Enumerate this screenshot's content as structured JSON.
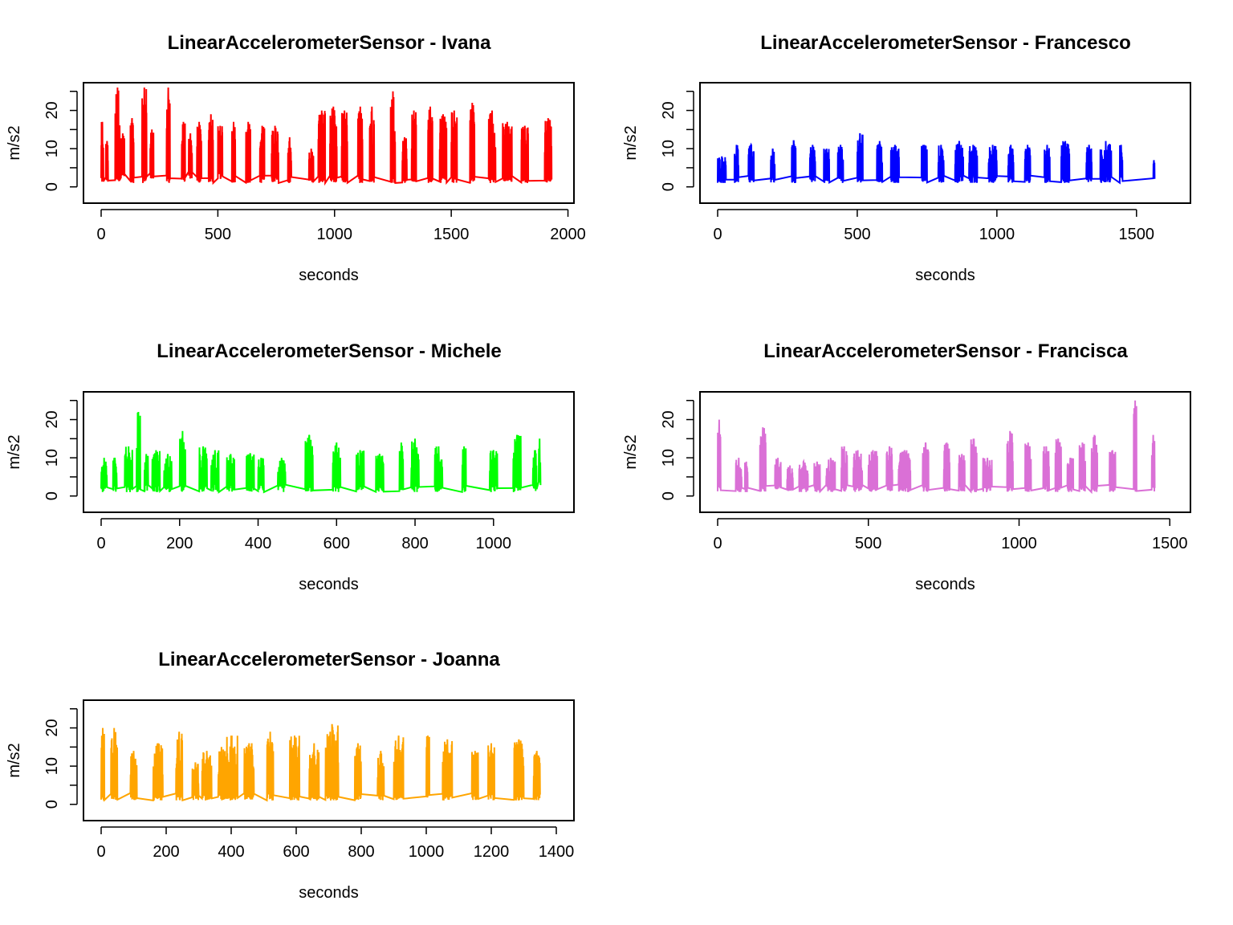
{
  "chart_data": [
    {
      "type": "line",
      "title": "LinearAccelerometerSensor - Ivana",
      "xlabel": "seconds",
      "ylabel": "m/s2",
      "color": "#ff0000",
      "xlim": [
        0,
        1950
      ],
      "ylim": [
        -3,
        26
      ],
      "xticks": [
        0,
        500,
        1000,
        1500,
        2000
      ],
      "yticks": [
        0,
        5,
        10,
        15,
        20,
        25
      ],
      "ytick_labels": [
        "0",
        "",
        "10",
        "",
        "20",
        ""
      ],
      "bursts": [
        [
          0,
          10,
          1,
          17
        ],
        [
          20,
          30,
          1,
          12
        ],
        [
          60,
          80,
          1,
          26
        ],
        [
          85,
          100,
          2,
          14
        ],
        [
          125,
          140,
          1,
          18
        ],
        [
          175,
          195,
          1,
          26
        ],
        [
          210,
          225,
          2,
          15
        ],
        [
          280,
          295,
          1,
          26
        ],
        [
          345,
          360,
          1,
          17
        ],
        [
          375,
          390,
          2,
          14
        ],
        [
          410,
          430,
          1,
          17
        ],
        [
          460,
          480,
          1,
          19
        ],
        [
          500,
          520,
          2,
          16
        ],
        [
          560,
          575,
          1,
          17
        ],
        [
          620,
          640,
          1,
          17
        ],
        [
          680,
          700,
          1,
          16
        ],
        [
          730,
          760,
          1,
          16
        ],
        [
          800,
          815,
          1,
          13
        ],
        [
          890,
          910,
          1,
          10
        ],
        [
          930,
          960,
          1,
          20
        ],
        [
          980,
          1010,
          1,
          21
        ],
        [
          1030,
          1055,
          1,
          20
        ],
        [
          1100,
          1120,
          1,
          21
        ],
        [
          1150,
          1170,
          1,
          21
        ],
        [
          1240,
          1260,
          1,
          25
        ],
        [
          1290,
          1310,
          1,
          13
        ],
        [
          1330,
          1350,
          1,
          20
        ],
        [
          1400,
          1420,
          1,
          21
        ],
        [
          1450,
          1480,
          1,
          19
        ],
        [
          1500,
          1525,
          1,
          20
        ],
        [
          1580,
          1600,
          1,
          22
        ],
        [
          1660,
          1690,
          1,
          20
        ],
        [
          1720,
          1760,
          1,
          17
        ],
        [
          1800,
          1830,
          1,
          16
        ],
        [
          1900,
          1930,
          1,
          18
        ]
      ]
    },
    {
      "type": "line",
      "title": "LinearAccelerometerSensor - Francesco",
      "xlabel": "seconds",
      "ylabel": "m/s2",
      "color": "#0000ff",
      "xlim": [
        0,
        1630
      ],
      "ylim": [
        -3,
        26
      ],
      "xticks": [
        0,
        500,
        1000,
        1500
      ],
      "yticks": [
        0,
        5,
        10,
        15,
        20,
        25
      ],
      "ytick_labels": [
        "0",
        "",
        "10",
        "",
        "20",
        ""
      ],
      "bursts": [
        [
          0,
          30,
          1,
          8
        ],
        [
          60,
          75,
          1,
          11
        ],
        [
          110,
          130,
          1,
          11
        ],
        [
          190,
          205,
          1,
          10
        ],
        [
          265,
          280,
          1,
          12
        ],
        [
          330,
          350,
          1,
          11
        ],
        [
          380,
          400,
          1,
          10
        ],
        [
          430,
          450,
          1,
          11
        ],
        [
          500,
          520,
          1,
          14
        ],
        [
          570,
          590,
          1,
          12
        ],
        [
          620,
          650,
          1,
          11
        ],
        [
          730,
          750,
          1,
          11
        ],
        [
          790,
          810,
          1,
          11
        ],
        [
          850,
          880,
          1,
          12
        ],
        [
          900,
          930,
          1,
          11
        ],
        [
          970,
          1000,
          1,
          11
        ],
        [
          1040,
          1060,
          1,
          11
        ],
        [
          1100,
          1120,
          1,
          11
        ],
        [
          1170,
          1190,
          1,
          11
        ],
        [
          1230,
          1260,
          1,
          12
        ],
        [
          1320,
          1340,
          1,
          11
        ],
        [
          1370,
          1410,
          1,
          12
        ],
        [
          1440,
          1450,
          1,
          11
        ],
        [
          1560,
          1565,
          2,
          7
        ]
      ]
    },
    {
      "type": "line",
      "title": "LinearAccelerometerSensor - Michele",
      "xlabel": "seconds",
      "ylabel": "m/s2",
      "color": "#00ff00",
      "xlim": [
        0,
        1160
      ],
      "ylim": [
        -3,
        26
      ],
      "xticks": [
        0,
        200,
        400,
        600,
        800,
        1000
      ],
      "yticks": [
        0,
        5,
        10,
        15,
        20,
        25
      ],
      "ytick_labels": [
        "0",
        "",
        "10",
        "",
        "20",
        ""
      ],
      "bursts": [
        [
          0,
          15,
          1,
          10
        ],
        [
          30,
          40,
          1,
          10
        ],
        [
          60,
          80,
          1,
          13
        ],
        [
          90,
          100,
          1,
          22
        ],
        [
          110,
          120,
          1,
          11
        ],
        [
          130,
          150,
          1,
          12
        ],
        [
          160,
          180,
          1,
          11
        ],
        [
          200,
          215,
          1,
          17
        ],
        [
          250,
          270,
          1,
          13
        ],
        [
          280,
          300,
          1,
          12
        ],
        [
          320,
          340,
          1,
          11
        ],
        [
          370,
          390,
          1,
          11
        ],
        [
          400,
          415,
          1,
          10
        ],
        [
          450,
          470,
          1,
          10
        ],
        [
          520,
          540,
          1,
          16
        ],
        [
          590,
          610,
          1,
          14
        ],
        [
          650,
          670,
          1,
          12
        ],
        [
          700,
          720,
          1,
          11
        ],
        [
          760,
          770,
          1,
          14
        ],
        [
          790,
          810,
          1,
          15
        ],
        [
          850,
          870,
          1,
          13
        ],
        [
          920,
          930,
          1,
          13
        ],
        [
          990,
          1010,
          1,
          12
        ],
        [
          1050,
          1070,
          1,
          16
        ],
        [
          1100,
          1110,
          1,
          12
        ],
        [
          1115,
          1120,
          2,
          15
        ]
      ]
    },
    {
      "type": "line",
      "title": "LinearAccelerometerSensor - Francisca",
      "xlabel": "seconds",
      "ylabel": "m/s2",
      "color": "#da70d6",
      "xlim": [
        0,
        1510
      ],
      "ylim": [
        -3,
        26
      ],
      "xticks": [
        0,
        500,
        1000,
        1500
      ],
      "yticks": [
        0,
        5,
        10,
        15,
        20,
        25
      ],
      "ytick_labels": [
        "0",
        "",
        "10",
        "",
        "20",
        ""
      ],
      "bursts": [
        [
          0,
          10,
          1,
          20
        ],
        [
          60,
          80,
          1,
          10
        ],
        [
          90,
          100,
          1,
          9
        ],
        [
          140,
          160,
          1,
          18
        ],
        [
          190,
          210,
          1,
          10
        ],
        [
          230,
          250,
          1,
          8
        ],
        [
          270,
          300,
          1,
          9
        ],
        [
          320,
          340,
          1,
          9
        ],
        [
          360,
          390,
          1,
          10
        ],
        [
          410,
          430,
          1,
          13
        ],
        [
          450,
          480,
          1,
          12
        ],
        [
          500,
          530,
          1,
          12
        ],
        [
          560,
          580,
          1,
          13
        ],
        [
          600,
          640,
          1,
          12
        ],
        [
          680,
          700,
          1,
          14
        ],
        [
          750,
          770,
          1,
          14
        ],
        [
          800,
          820,
          1,
          11
        ],
        [
          840,
          860,
          1,
          15
        ],
        [
          880,
          910,
          1,
          10
        ],
        [
          960,
          980,
          1,
          17
        ],
        [
          1020,
          1040,
          1,
          14
        ],
        [
          1080,
          1100,
          1,
          13
        ],
        [
          1120,
          1140,
          1,
          15
        ],
        [
          1160,
          1180,
          1,
          10
        ],
        [
          1200,
          1220,
          1,
          14
        ],
        [
          1240,
          1260,
          1,
          16
        ],
        [
          1300,
          1320,
          1,
          12
        ],
        [
          1380,
          1390,
          1,
          25
        ],
        [
          1440,
          1450,
          1,
          16
        ]
      ]
    },
    {
      "type": "line",
      "title": "LinearAccelerometerSensor - Joanna",
      "xlabel": "seconds",
      "ylabel": "m/s2",
      "color": "#ffa500",
      "xlim": [
        0,
        1400
      ],
      "ylim": [
        -3,
        26
      ],
      "xticks": [
        0,
        200,
        400,
        600,
        800,
        1000,
        1200,
        1400
      ],
      "yticks": [
        0,
        5,
        10,
        15,
        20,
        25
      ],
      "ytick_labels": [
        "0",
        "",
        "10",
        "",
        "20",
        ""
      ],
      "bursts": [
        [
          0,
          10,
          1,
          20
        ],
        [
          30,
          50,
          1,
          20
        ],
        [
          90,
          110,
          1,
          14
        ],
        [
          160,
          190,
          1,
          16
        ],
        [
          230,
          250,
          1,
          19
        ],
        [
          280,
          300,
          1,
          11
        ],
        [
          310,
          340,
          1,
          14
        ],
        [
          360,
          380,
          1,
          15
        ],
        [
          380,
          420,
          1,
          18
        ],
        [
          440,
          470,
          1,
          16
        ],
        [
          510,
          530,
          1,
          19
        ],
        [
          580,
          610,
          1,
          18
        ],
        [
          640,
          670,
          1,
          16
        ],
        [
          690,
          730,
          1,
          21
        ],
        [
          780,
          800,
          1,
          16
        ],
        [
          850,
          870,
          1,
          14
        ],
        [
          900,
          930,
          1,
          18
        ],
        [
          1000,
          1010,
          1,
          18
        ],
        [
          1050,
          1080,
          1,
          17
        ],
        [
          1140,
          1160,
          1,
          14
        ],
        [
          1190,
          1210,
          1,
          16
        ],
        [
          1270,
          1300,
          1,
          17
        ],
        [
          1330,
          1350,
          1,
          14
        ]
      ]
    }
  ]
}
